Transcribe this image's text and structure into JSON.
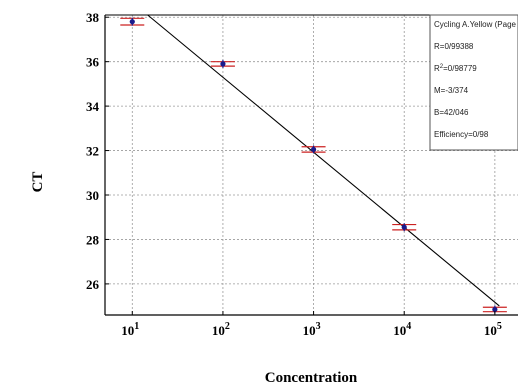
{
  "chart_data": {
    "type": "scatter",
    "xlabel": "Concentration",
    "ylabel": "CT",
    "x_scale": "log",
    "xlim": [
      5,
      180000
    ],
    "ylim": [
      24.6,
      38.1
    ],
    "x_ticks": [
      {
        "value": 10,
        "base": "10",
        "exp": "1"
      },
      {
        "value": 100,
        "base": "10",
        "exp": "2"
      },
      {
        "value": 1000,
        "base": "10",
        "exp": "3"
      },
      {
        "value": 10000,
        "base": "10",
        "exp": "4"
      },
      {
        "value": 100000,
        "base": "10",
        "exp": "5"
      }
    ],
    "y_ticks": [
      26,
      28,
      30,
      32,
      34,
      36,
      38
    ],
    "grid": true,
    "points": [
      {
        "x": 10,
        "y": 37.8,
        "err": 0.15
      },
      {
        "x": 100,
        "y": 35.9,
        "err": 0.1
      },
      {
        "x": 1000,
        "y": 32.05,
        "err": 0.12
      },
      {
        "x": 10000,
        "y": 28.55,
        "err": 0.12
      },
      {
        "x": 100000,
        "y": 24.85,
        "err": 0.1
      }
    ],
    "fit_line": {
      "slope": -3.374,
      "intercept": 42.046
    },
    "colors": {
      "point": "#1a1a8c",
      "error_bar": "#cc2222",
      "fit_line": "#000000"
    },
    "info_box": {
      "position": "top-right",
      "lines": [
        "Cycling A.Yellow (Page",
        "R=0/99388",
        "R^2=0/98779",
        "M=-3/374",
        "B=42/046",
        "Efficiency=0/98"
      ]
    }
  }
}
